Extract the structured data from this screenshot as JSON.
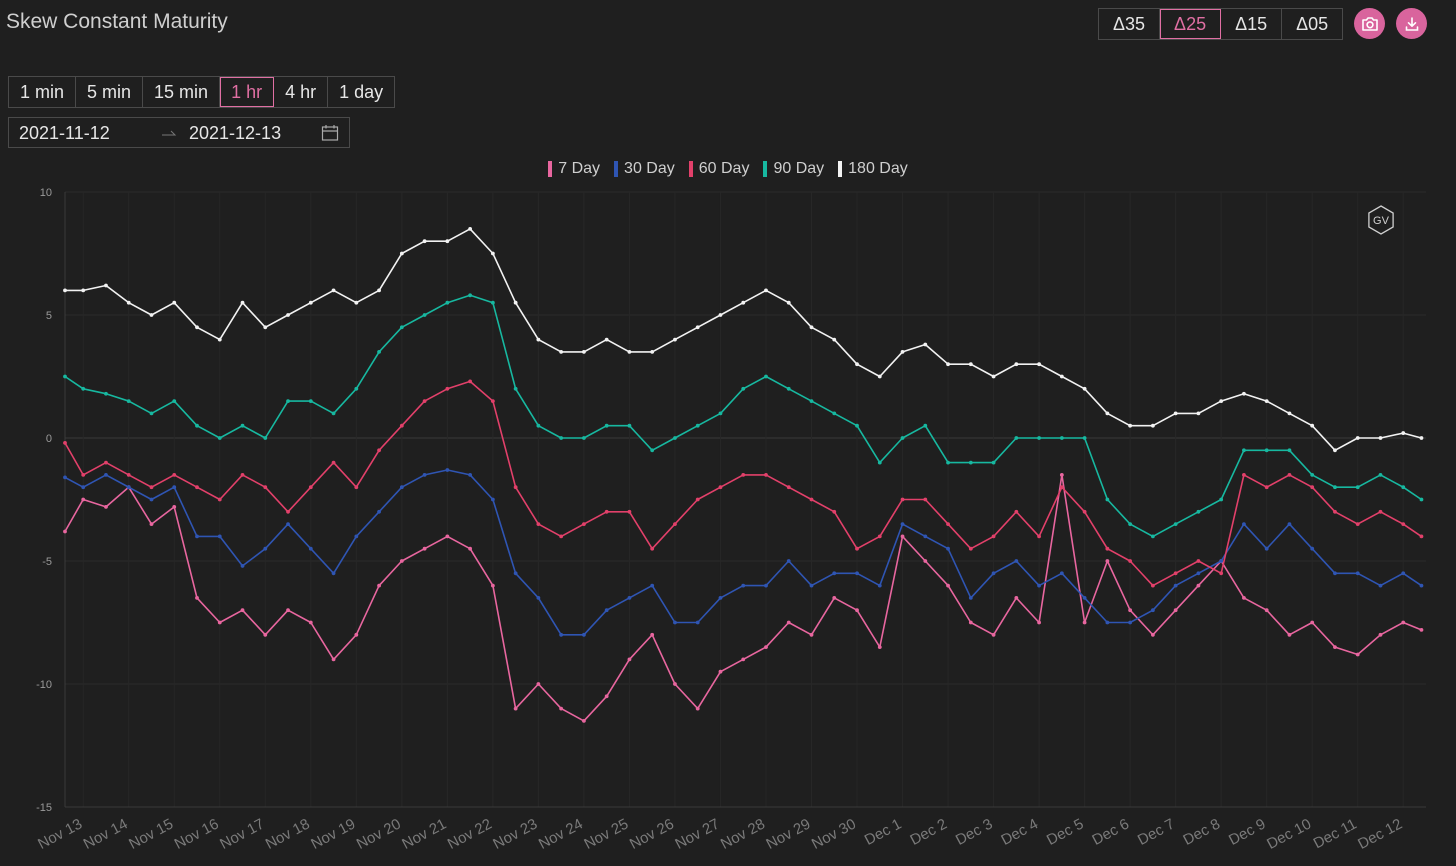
{
  "header": {
    "title": "Skew Constant Maturity"
  },
  "delta_buttons": [
    {
      "label": "Δ35",
      "active": false
    },
    {
      "label": "Δ25",
      "active": true
    },
    {
      "label": "Δ15",
      "active": false
    },
    {
      "label": "Δ05",
      "active": false
    }
  ],
  "icons": {
    "screenshot": "camera-icon",
    "download": "download-icon",
    "calendar": "calendar-icon",
    "watermark": "gv-logo"
  },
  "intervals": [
    {
      "label": "1 min",
      "active": false
    },
    {
      "label": "5 min",
      "active": false
    },
    {
      "label": "15 min",
      "active": false
    },
    {
      "label": "1 hr",
      "active": true
    },
    {
      "label": "4 hr",
      "active": false
    },
    {
      "label": "1 day",
      "active": false
    }
  ],
  "date_range": {
    "start": "2021-11-12",
    "end": "2021-12-13"
  },
  "colors": {
    "accent": "#e06fa3",
    "background": "#1f1f1f"
  },
  "chart_data": {
    "type": "line",
    "ylim": [
      -15,
      10
    ],
    "yticks": [
      10,
      5,
      0,
      -5,
      -10,
      -15
    ],
    "x_ticks": [
      "Nov 13",
      "Nov 14",
      "Nov 15",
      "Nov 16",
      "Nov 17",
      "Nov 18",
      "Nov 19",
      "Nov 20",
      "Nov 21",
      "Nov 22",
      "Nov 23",
      "Nov 24",
      "Nov 25",
      "Nov 26",
      "Nov 27",
      "Nov 28",
      "Nov 29",
      "Nov 30",
      "Dec 1",
      "Dec 2",
      "Dec 3",
      "Dec 4",
      "Dec 5",
      "Dec 6",
      "Dec 7",
      "Dec 8",
      "Dec 9",
      "Dec 10",
      "Dec 11",
      "Dec 12"
    ],
    "xlim": [
      -0.4,
      29.5
    ],
    "grid": true,
    "legend_position": "top",
    "watermark": "GV",
    "x": [
      -0.4,
      0.0,
      0.5,
      1.0,
      1.5,
      2.0,
      2.5,
      3.0,
      3.5,
      4.0,
      4.5,
      5.0,
      5.5,
      6.0,
      6.5,
      7.0,
      7.5,
      8.0,
      8.5,
      9.0,
      9.5,
      10.0,
      10.5,
      11.0,
      11.5,
      12.0,
      12.5,
      13.0,
      13.5,
      14.0,
      14.5,
      15.0,
      15.5,
      16.0,
      16.5,
      17.0,
      17.5,
      18.0,
      18.5,
      19.0,
      19.5,
      20.0,
      20.5,
      21.0,
      21.5,
      22.0,
      22.5,
      23.0,
      23.5,
      24.0,
      24.5,
      25.0,
      25.5,
      26.0,
      26.5,
      27.0,
      27.5,
      28.0,
      28.5,
      29.0,
      29.4
    ],
    "series": [
      {
        "name": "7 Day",
        "color": "#e8669f",
        "values": [
          -3.8,
          -2.5,
          -2.8,
          -2.0,
          -3.5,
          -2.8,
          -6.5,
          -7.5,
          -7.0,
          -8.0,
          -7.0,
          -7.5,
          -9.0,
          -8.0,
          -6.0,
          -5.0,
          -4.5,
          -4.0,
          -4.5,
          -6.0,
          -11.0,
          -10.0,
          -11.0,
          -11.5,
          -10.5,
          -9.0,
          -8.0,
          -10.0,
          -11.0,
          -9.5,
          -9.0,
          -8.5,
          -7.5,
          -8.0,
          -6.5,
          -7.0,
          -8.5,
          -4.0,
          -5.0,
          -6.0,
          -7.5,
          -8.0,
          -6.5,
          -7.5,
          -1.5,
          -7.5,
          -5.0,
          -7.0,
          -8.0,
          -7.0,
          -6.0,
          -5.0,
          -6.5,
          -7.0,
          -8.0,
          -7.5,
          -8.5,
          -8.8,
          -8.0,
          -7.5,
          -7.8
        ]
      },
      {
        "name": "30 Day",
        "color": "#2f55b3",
        "values": [
          -1.6,
          -2.0,
          -1.5,
          -2.0,
          -2.5,
          -2.0,
          -4.0,
          -4.0,
          -5.2,
          -4.5,
          -3.5,
          -4.5,
          -5.5,
          -4.0,
          -3.0,
          -2.0,
          -1.5,
          -1.3,
          -1.5,
          -2.5,
          -5.5,
          -6.5,
          -8.0,
          -8.0,
          -7.0,
          -6.5,
          -6.0,
          -7.5,
          -7.5,
          -6.5,
          -6.0,
          -6.0,
          -5.0,
          -6.0,
          -5.5,
          -5.5,
          -6.0,
          -3.5,
          -4.0,
          -4.5,
          -6.5,
          -5.5,
          -5.0,
          -6.0,
          -5.5,
          -6.5,
          -7.5,
          -7.5,
          -7.0,
          -6.0,
          -5.5,
          -5.0,
          -3.5,
          -4.5,
          -3.5,
          -4.5,
          -5.5,
          -5.5,
          -6.0,
          -5.5,
          -6.0
        ]
      },
      {
        "name": "60 Day",
        "color": "#e2406a",
        "values": [
          -0.2,
          -1.5,
          -1.0,
          -1.5,
          -2.0,
          -1.5,
          -2.0,
          -2.5,
          -1.5,
          -2.0,
          -3.0,
          -2.0,
          -1.0,
          -2.0,
          -0.5,
          0.5,
          1.5,
          2.0,
          2.3,
          1.5,
          -2.0,
          -3.5,
          -4.0,
          -3.5,
          -3.0,
          -3.0,
          -4.5,
          -3.5,
          -2.5,
          -2.0,
          -1.5,
          -1.5,
          -2.0,
          -2.5,
          -3.0,
          -4.5,
          -4.0,
          -2.5,
          -2.5,
          -3.5,
          -4.5,
          -4.0,
          -3.0,
          -4.0,
          -2.0,
          -3.0,
          -4.5,
          -5.0,
          -6.0,
          -5.5,
          -5.0,
          -5.5,
          -1.5,
          -2.0,
          -1.5,
          -2.0,
          -3.0,
          -3.5,
          -3.0,
          -3.5,
          -4.0
        ]
      },
      {
        "name": "90 Day",
        "color": "#17b8a0",
        "values": [
          2.5,
          2.0,
          1.8,
          1.5,
          1.0,
          1.5,
          0.5,
          0.0,
          0.5,
          0.0,
          1.5,
          1.5,
          1.0,
          2.0,
          3.5,
          4.5,
          5.0,
          5.5,
          5.8,
          5.5,
          2.0,
          0.5,
          0.0,
          0.0,
          0.5,
          0.5,
          -0.5,
          0.0,
          0.5,
          1.0,
          2.0,
          2.5,
          2.0,
          1.5,
          1.0,
          0.5,
          -1.0,
          0.0,
          0.5,
          -1.0,
          -1.0,
          -1.0,
          0.0,
          0.0,
          0.0,
          0.0,
          -2.5,
          -3.5,
          -4.0,
          -3.5,
          -3.0,
          -2.5,
          -0.5,
          -0.5,
          -0.5,
          -1.5,
          -2.0,
          -2.0,
          -1.5,
          -2.0,
          -2.5
        ]
      },
      {
        "name": "180 Day",
        "color": "#f2f2f2",
        "values": [
          6.0,
          6.0,
          6.2,
          5.5,
          5.0,
          5.5,
          4.5,
          4.0,
          5.5,
          4.5,
          5.0,
          5.5,
          6.0,
          5.5,
          6.0,
          7.5,
          8.0,
          8.0,
          8.5,
          7.5,
          5.5,
          4.0,
          3.5,
          3.5,
          4.0,
          3.5,
          3.5,
          4.0,
          4.5,
          5.0,
          5.5,
          6.0,
          5.5,
          4.5,
          4.0,
          3.0,
          2.5,
          3.5,
          3.8,
          3.0,
          3.0,
          2.5,
          3.0,
          3.0,
          2.5,
          2.0,
          1.0,
          0.5,
          0.5,
          1.0,
          1.0,
          1.5,
          1.8,
          1.5,
          1.0,
          0.5,
          -0.5,
          0.0,
          0.0,
          0.2,
          0.0
        ]
      }
    ]
  }
}
